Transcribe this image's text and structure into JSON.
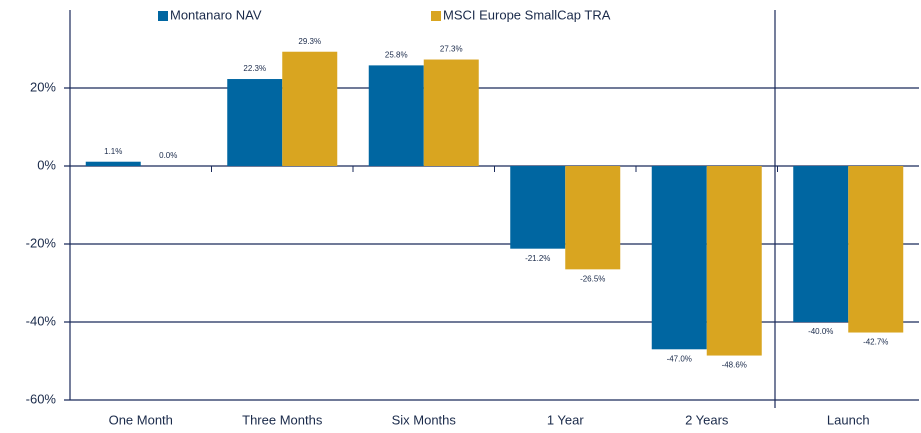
{
  "chart_data": {
    "type": "bar",
    "categories": [
      "One Month",
      "Three Months",
      "Six Months",
      "1 Year",
      "2 Years",
      "Launch"
    ],
    "series": [
      {
        "name": "Montanaro NAV",
        "color": "#0066a1",
        "values": [
          1.1,
          22.3,
          25.8,
          -21.2,
          -47.0,
          -40.0
        ],
        "value_labels": [
          "1.1%",
          "22.3%",
          "25.8%",
          "-21.2%",
          "-47.0%",
          "-40.0%"
        ]
      },
      {
        "name": "MSCI Europe SmallCap TRA",
        "color": "#d9a520",
        "values": [
          0.0,
          29.3,
          27.3,
          -26.5,
          -48.6,
          -42.7
        ],
        "value_labels": [
          "0.0%",
          "29.3%",
          "27.3%",
          "-26.5%",
          "-48.6%",
          "-42.7%"
        ]
      }
    ],
    "ylim": [
      -60,
      40
    ],
    "yticks": [
      {
        "value": -60,
        "label": "-60%"
      },
      {
        "value": -40,
        "label": "-40%"
      },
      {
        "value": -20,
        "label": "-20%"
      },
      {
        "value": 0,
        "label": "0%"
      },
      {
        "value": 20,
        "label": "20%"
      }
    ],
    "grid": true,
    "legend": "top"
  }
}
